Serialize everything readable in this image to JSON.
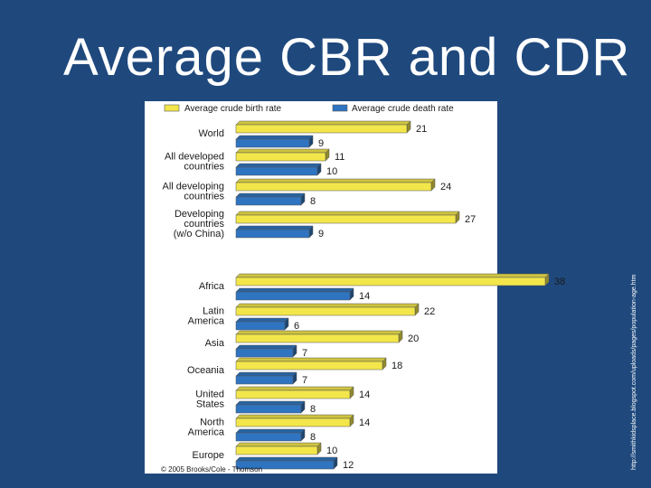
{
  "slide": {
    "title": "Average CBR and CDR",
    "side_url": "http://smithkidsplace.blogspot.com/uploads/pages/population-age.htm"
  },
  "chart_data": {
    "type": "bar",
    "orientation": "horizontal",
    "title": "",
    "categories": [
      [
        "World"
      ],
      [
        "All developed",
        "countries"
      ],
      [
        "All developing",
        "countries"
      ],
      [
        "Developing",
        "countries",
        "(w/o China)"
      ],
      [
        "Africa"
      ],
      [
        "Latin",
        "America"
      ],
      [
        "Asia"
      ],
      [
        "Oceania"
      ],
      [
        "United",
        "States"
      ],
      [
        "North",
        "America"
      ],
      [
        "Europe"
      ]
    ],
    "series": [
      {
        "name": "Average crude birth rate",
        "color": "#f2e64a",
        "values": [
          21,
          11,
          24,
          27,
          38,
          22,
          20,
          18,
          14,
          14,
          10
        ]
      },
      {
        "name": "Average crude death rate",
        "color": "#2e74c0",
        "values": [
          9,
          10,
          8,
          9,
          14,
          6,
          7,
          7,
          8,
          8,
          12
        ]
      }
    ],
    "xlim": [
      0,
      40
    ],
    "legend": "top",
    "credit": "© 2005 Brooks/Cole - Thomson"
  }
}
